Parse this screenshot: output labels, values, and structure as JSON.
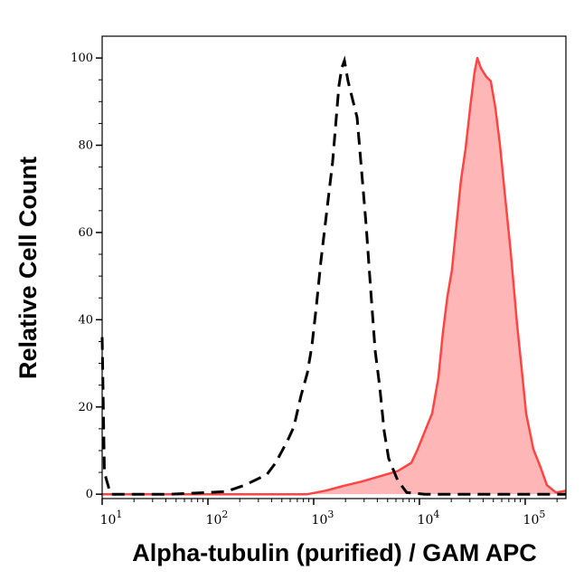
{
  "chart_data": {
    "type": "area",
    "title": "",
    "xlabel": "Alpha-tubulin (purified) / GAM APC",
    "ylabel": "Relative Cell Count",
    "x_scale": "log",
    "xlim": [
      10,
      242700
    ],
    "ylim": [
      -1,
      105
    ],
    "x_ticks": [
      {
        "base": "10",
        "exp": "1",
        "value": 10
      },
      {
        "base": "10",
        "exp": "2",
        "value": 100
      },
      {
        "base": "10",
        "exp": "3",
        "value": 1000
      },
      {
        "base": "10",
        "exp": "4",
        "value": 10000
      },
      {
        "base": "10",
        "exp": "5",
        "value": 100000
      }
    ],
    "y_ticks": [
      0,
      20,
      40,
      60,
      80,
      100
    ],
    "grid": false,
    "colors": {
      "control": "#000000",
      "stained_line": "#ff4444",
      "stained_fill": "#ffb6b6"
    },
    "series": [
      {
        "style": "dashed-line",
        "x": [
          10,
          10.5,
          12,
          45,
          148,
          220,
          360,
          437,
          566,
          649,
          759,
          871,
          962,
          1062,
          1170,
          1343,
          1511,
          1637,
          1734,
          1841,
          1954,
          2113,
          2333,
          2572,
          2838,
          3133,
          3451,
          3811,
          4207,
          4645,
          5117,
          6237,
          7586,
          11246,
          242700
        ],
        "y": [
          36,
          5,
          0,
          0,
          0.6,
          2,
          4.5,
          7.2,
          12.3,
          15.4,
          22.6,
          27.8,
          34,
          43.2,
          53.5,
          65.8,
          76.1,
          86.4,
          93.6,
          97.7,
          99.4,
          94.7,
          90.5,
          86.4,
          74.1,
          61.7,
          47.3,
          32.9,
          24.7,
          14.4,
          8.2,
          3.1,
          0.4,
          0,
          0
        ]
      },
      {
        "style": "filled-area",
        "x": [
          10,
          871,
          1291,
          1914,
          2838,
          4207,
          6237,
          8375,
          9616,
          11246,
          13183,
          15101,
          16672,
          18398,
          20303,
          22387,
          24717,
          27290,
          30130,
          33190,
          35237,
          38106,
          42855,
          47315,
          52240,
          57677,
          63533,
          72946,
          83753,
          92470,
          102100,
          119400,
          139600,
          160300,
          195300,
          242700
        ],
        "y": [
          0,
          0,
          0.8,
          1.9,
          2.9,
          4.1,
          5.3,
          7.2,
          10.3,
          14.4,
          18.5,
          26.7,
          37,
          45.3,
          51.4,
          61.7,
          72,
          79.2,
          88.5,
          96.7,
          100,
          97.7,
          95.7,
          94.7,
          88.5,
          80.2,
          69.9,
          55.6,
          39.1,
          28.8,
          18.5,
          10.3,
          6.2,
          2.1,
          0.4,
          0.8
        ]
      }
    ]
  }
}
